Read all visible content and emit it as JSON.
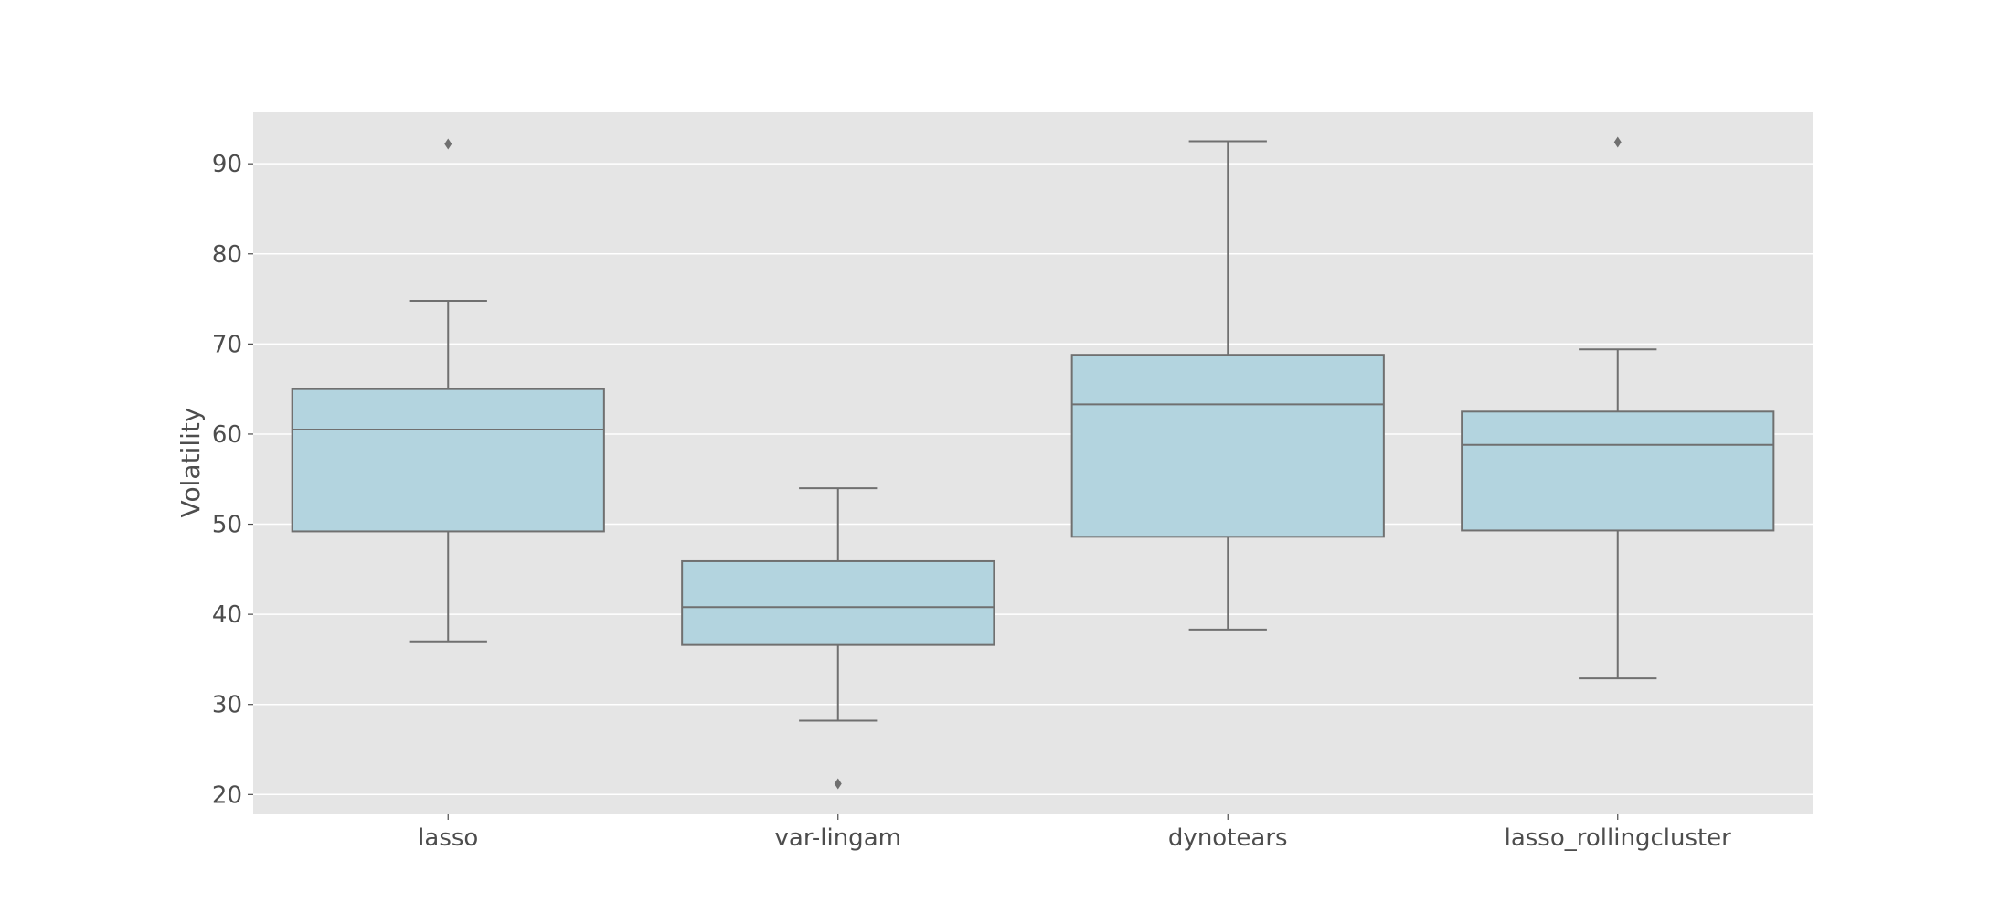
{
  "chart_data": {
    "type": "box",
    "title": "",
    "xlabel": "",
    "ylabel": "Volatility",
    "ylim": [
      17.8,
      95.8
    ],
    "yticks": [
      20,
      30,
      40,
      50,
      60,
      70,
      80,
      90
    ],
    "grid": true,
    "legend": "none",
    "colors": {
      "background": "#e5e5e5",
      "box_fill": "#b3d4df",
      "line": "#707070",
      "grid": "#ffffff",
      "text": "#4d4d4d"
    },
    "categories": [
      "lasso",
      "var-lingam",
      "dynotears",
      "lasso_rollingcluster"
    ],
    "boxes": [
      {
        "category": "lasso",
        "whisker_low": 37.0,
        "q1": 49.2,
        "median": 60.5,
        "q3": 65.0,
        "whisker_high": 74.8,
        "outliers": [
          92.2
        ]
      },
      {
        "category": "var-lingam",
        "whisker_low": 28.2,
        "q1": 36.6,
        "median": 40.8,
        "q3": 45.9,
        "whisker_high": 54.0,
        "outliers": [
          21.2
        ]
      },
      {
        "category": "dynotears",
        "whisker_low": 38.3,
        "q1": 48.6,
        "median": 63.3,
        "q3": 68.8,
        "whisker_high": 92.5,
        "outliers": []
      },
      {
        "category": "lasso_rollingcluster",
        "whisker_low": 32.9,
        "q1": 49.3,
        "median": 58.8,
        "q3": 62.5,
        "whisker_high": 69.4,
        "outliers": [
          92.4
        ]
      }
    ]
  }
}
